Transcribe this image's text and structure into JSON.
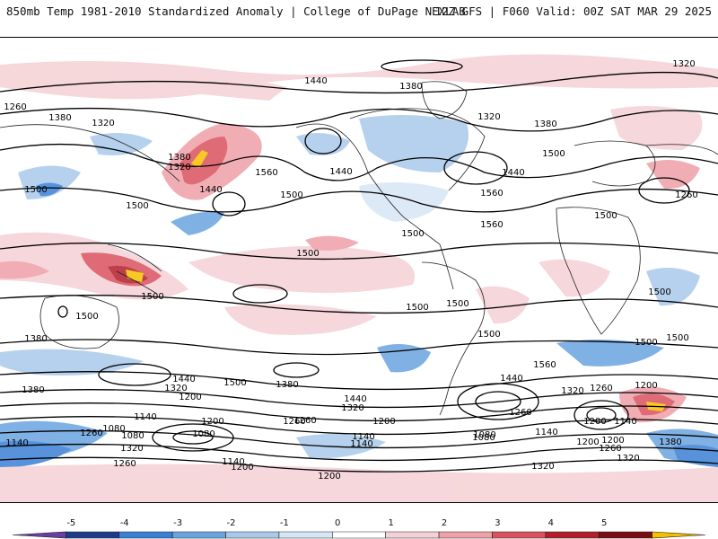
{
  "header": {
    "left": "850mb Temp 1981-2010 Standardized Anomaly | College of DuPage NEXLAB",
    "right": "12Z GFS | F060 Valid: 00Z SAT MAR 29 2025"
  },
  "colorbar": {
    "ticks": [
      "-5",
      "-4",
      "-3",
      "-2",
      "-1",
      "0",
      "1",
      "2",
      "3",
      "4",
      "5"
    ],
    "colors": [
      "#6b3fa0",
      "#1e3a8a",
      "#3a7fd5",
      "#6aa4e0",
      "#a9c9ea",
      "#d7e6f5",
      "#ffffff",
      "#f5d1d5",
      "#eea0a8",
      "#d9525e",
      "#b31e2a",
      "#7a0d14",
      "#f5c000"
    ]
  },
  "map": {
    "contour_labels": [
      {
        "text": "1320"
      },
      {
        "text": "1440"
      },
      {
        "text": "1380"
      },
      {
        "text": "1260"
      },
      {
        "text": "1260"
      },
      {
        "text": "1380"
      },
      {
        "text": "1320"
      },
      {
        "text": "1320"
      },
      {
        "text": "1380"
      },
      {
        "text": "1560"
      },
      {
        "text": "1380"
      },
      {
        "text": "1440"
      },
      {
        "text": "1320"
      },
      {
        "text": "1500"
      },
      {
        "text": "1440"
      },
      {
        "text": "1500"
      },
      {
        "text": "1500"
      },
      {
        "text": "1560"
      },
      {
        "text": "1440"
      },
      {
        "text": "1500"
      },
      {
        "text": "1500"
      },
      {
        "text": "1560"
      },
      {
        "text": "1500"
      },
      {
        "text": "1500"
      },
      {
        "text": "1500"
      },
      {
        "text": "1500"
      },
      {
        "text": "1500"
      },
      {
        "text": "1500"
      },
      {
        "text": "1500"
      },
      {
        "text": "1500"
      },
      {
        "text": "1500"
      },
      {
        "text": "1500"
      },
      {
        "text": "1380"
      },
      {
        "text": "1560"
      },
      {
        "text": "1440"
      },
      {
        "text": "1440"
      },
      {
        "text": "1500"
      },
      {
        "text": "1380"
      },
      {
        "text": "1320"
      },
      {
        "text": "1260"
      },
      {
        "text": "1200"
      },
      {
        "text": "1440"
      },
      {
        "text": "1320"
      },
      {
        "text": "1200"
      },
      {
        "text": "1260"
      },
      {
        "text": "1380"
      },
      {
        "text": "1320"
      },
      {
        "text": "1200"
      },
      {
        "text": "1140"
      },
      {
        "text": "1260"
      },
      {
        "text": "1200"
      },
      {
        "text": "1200"
      },
      {
        "text": "1080"
      },
      {
        "text": "1140"
      },
      {
        "text": "1080"
      },
      {
        "text": "1260"
      },
      {
        "text": "1320"
      },
      {
        "text": "1140"
      },
      {
        "text": "1140"
      },
      {
        "text": "1200"
      },
      {
        "text": "1080"
      },
      {
        "text": "1140"
      },
      {
        "text": "1200"
      },
      {
        "text": "1260"
      },
      {
        "text": "1380"
      },
      {
        "text": "1320"
      },
      {
        "text": "1080"
      },
      {
        "text": "1200"
      },
      {
        "text": "1260"
      },
      {
        "text": "1260"
      },
      {
        "text": "1200"
      },
      {
        "text": "1140"
      },
      {
        "text": "1140"
      },
      {
        "text": "1080"
      },
      {
        "text": "1320"
      }
    ]
  }
}
